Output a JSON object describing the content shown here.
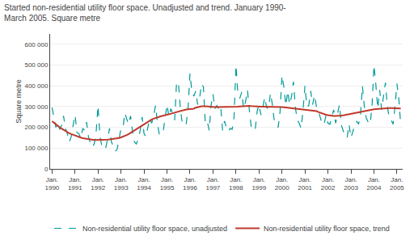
{
  "chart_data": {
    "type": "line",
    "title": "Started non-residential utility floor space. Unadjusted and trend. January 1990-\nMarch 2005. Square metre",
    "ylabel": "Square metre",
    "ylim": [
      0,
      650000
    ],
    "yticks": [
      0,
      {
        "value": 100000,
        "label": "100 000"
      },
      {
        "value": 200000,
        "label": "200 000"
      },
      {
        "value": 300000,
        "label": "300 000"
      },
      {
        "value": 400000,
        "label": "400 000"
      },
      {
        "value": 500000,
        "label": "500 000"
      },
      {
        "value": 600000,
        "label": "600 000"
      }
    ],
    "grid": "y",
    "categories": [
      "Jan.\n1990",
      null,
      null,
      null,
      null,
      null,
      null,
      null,
      null,
      null,
      null,
      null,
      "Jan.\n1991",
      null,
      null,
      null,
      null,
      null,
      null,
      null,
      null,
      null,
      null,
      null,
      "Jan.\n1992",
      null,
      null,
      null,
      null,
      null,
      null,
      null,
      null,
      null,
      null,
      null,
      "Jan.\n1993",
      null,
      null,
      null,
      null,
      null,
      null,
      null,
      null,
      null,
      null,
      null,
      "Jan.\n1994",
      null,
      null,
      null,
      null,
      null,
      null,
      null,
      null,
      null,
      null,
      null,
      "Jan.\n1995",
      null,
      null,
      null,
      null,
      null,
      null,
      null,
      null,
      null,
      null,
      null,
      "Jan.\n1996",
      null,
      null,
      null,
      null,
      null,
      null,
      null,
      null,
      null,
      null,
      null,
      "Jan.\n1997",
      null,
      null,
      null,
      null,
      null,
      null,
      null,
      null,
      null,
      null,
      null,
      "Jan.\n1998",
      null,
      null,
      null,
      null,
      null,
      null,
      null,
      null,
      null,
      null,
      null,
      "Jan.\n1999",
      null,
      null,
      null,
      null,
      null,
      null,
      null,
      null,
      null,
      null,
      null,
      "Jan.\n2000",
      null,
      null,
      null,
      null,
      null,
      null,
      null,
      null,
      null,
      null,
      null,
      "Jan.\n2001",
      null,
      null,
      null,
      null,
      null,
      null,
      null,
      null,
      null,
      null,
      null,
      "Jan.\n2002",
      null,
      null,
      null,
      null,
      null,
      null,
      null,
      null,
      null,
      null,
      null,
      "Jan.\n2003",
      null,
      null,
      null,
      null,
      null,
      null,
      null,
      null,
      null,
      null,
      null,
      "Jan.\n2004",
      null,
      null,
      null,
      null,
      null,
      null,
      null,
      null,
      null,
      null,
      null,
      "Jan.\n2005",
      null,
      null
    ],
    "series": [
      {
        "name": "Non-residential utility floor space, unadjusted",
        "color": "#009999",
        "line_style": "dashed",
        "values": [
          295000,
          240000,
          200000,
          220000,
          190000,
          210000,
          255000,
          195000,
          170000,
          130000,
          155000,
          210000,
          260000,
          175000,
          170000,
          145000,
          195000,
          185000,
          225000,
          155000,
          125000,
          105000,
          120000,
          175000,
          305000,
          155000,
          110000,
          95000,
          100000,
          145000,
          195000,
          130000,
          105000,
          85000,
          95000,
          145000,
          195000,
          195000,
          270000,
          240000,
          215000,
          255000,
          180000,
          130000,
          120000,
          145000,
          185000,
          250000,
          170000,
          155000,
          200000,
          245000,
          220000,
          255000,
          305000,
          220000,
          165000,
          165000,
          180000,
          250000,
          310000,
          250000,
          290000,
          265000,
          235000,
          420000,
          410000,
          290000,
          215000,
          210000,
          215000,
          295000,
          460000,
          370000,
          350000,
          375000,
          310000,
          340000,
          410000,
          395000,
          220000,
          230000,
          185000,
          305000,
          360000,
          290000,
          305000,
          290000,
          305000,
          185000,
          230000,
          200000,
          180000,
          195000,
          190000,
          250000,
          500000,
          360000,
          340000,
          370000,
          290000,
          325000,
          380000,
          280000,
          200000,
          195000,
          185000,
          275000,
          310000,
          260000,
          295000,
          345000,
          295000,
          290000,
          365000,
          310000,
          230000,
          210000,
          200000,
          275000,
          450000,
          395000,
          305000,
          375000,
          310000,
          350000,
          420000,
          295000,
          235000,
          220000,
          195000,
          285000,
          400000,
          300000,
          305000,
          375000,
          310000,
          355000,
          300000,
          280000,
          250000,
          215000,
          215000,
          260000,
          220000,
          215000,
          250000,
          285000,
          220000,
          260000,
          310000,
          210000,
          180000,
          155000,
          150000,
          215000,
          150000,
          185000,
          210000,
          230000,
          215000,
          265000,
          400000,
          300000,
          245000,
          225000,
          215000,
          300000,
          500000,
          405000,
          290000,
          380000,
          285000,
          350000,
          415000,
          300000,
          245000,
          235000,
          215000,
          300000,
          410000,
          335000,
          210000
        ]
      },
      {
        "name": "Non-residential utility floor space, trend",
        "color": "#C0392B",
        "line_style": "solid",
        "values": [
          230000,
          222000,
          214000,
          207000,
          200000,
          194000,
          188000,
          182000,
          177000,
          172000,
          168000,
          164000,
          160000,
          157000,
          154000,
          151000,
          148000,
          146000,
          144000,
          142000,
          141000,
          140000,
          139000,
          139000,
          139000,
          139000,
          139000,
          140000,
          140000,
          141000,
          142000,
          143000,
          144000,
          145000,
          147000,
          149000,
          152000,
          155000,
          159000,
          163000,
          168000,
          173000,
          179000,
          185000,
          191000,
          197000,
          203000,
          210000,
          216000,
          222000,
          228000,
          233000,
          238000,
          242000,
          246000,
          249000,
          251000,
          254000,
          256000,
          258000,
          260000,
          263000,
          265000,
          268000,
          271000,
          274000,
          277000,
          280000,
          282000,
          284000,
          286000,
          287000,
          288000,
          289000,
          290000,
          295000,
          298000,
          300000,
          302000,
          302000,
          301000,
          300000,
          299000,
          298000,
          298000,
          298000,
          298000,
          298000,
          298000,
          298000,
          298000,
          298000,
          298000,
          298000,
          298000,
          298000,
          299000,
          300000,
          301000,
          302000,
          303000,
          304000,
          304000,
          304000,
          303000,
          302000,
          301000,
          300000,
          300000,
          300000,
          300000,
          300000,
          300000,
          300000,
          300000,
          300000,
          300000,
          300000,
          300000,
          299000,
          298000,
          297000,
          296000,
          295000,
          294000,
          293000,
          292000,
          291000,
          290000,
          289000,
          288000,
          287000,
          286000,
          285000,
          284000,
          283000,
          282000,
          281000,
          278000,
          274000,
          270000,
          267000,
          264000,
          261000,
          259000,
          257000,
          256000,
          255000,
          255000,
          255000,
          256000,
          257000,
          258000,
          260000,
          262000,
          264000,
          266000,
          268000,
          270000,
          272000,
          274000,
          276000,
          278000,
          280000,
          282000,
          284000,
          285000,
          286000,
          287000,
          288000,
          289000,
          290000,
          291000,
          292000,
          293000,
          293000,
          293000,
          293000,
          293000,
          293000,
          293000,
          292000,
          291000
        ]
      }
    ]
  }
}
